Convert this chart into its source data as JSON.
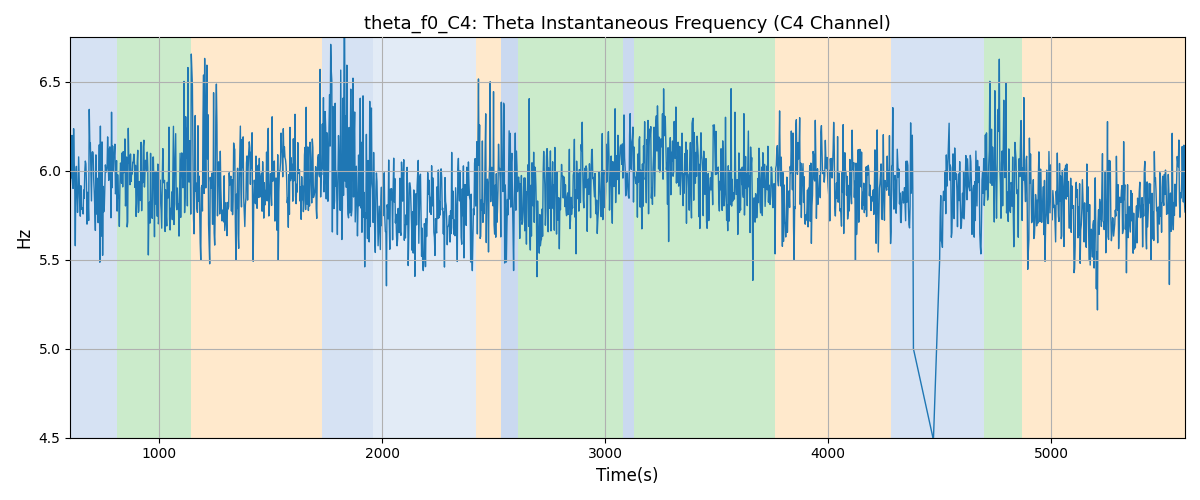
{
  "title": "theta_f0_C4: Theta Instantaneous Frequency (C4 Channel)",
  "xlabel": "Time(s)",
  "ylabel": "Hz",
  "ylim": [
    4.5,
    6.75
  ],
  "xlim": [
    600,
    5600
  ],
  "line_color": "#1f77b4",
  "line_width": 1.0,
  "yticks": [
    4.5,
    5.0,
    5.5,
    6.0,
    6.5
  ],
  "xticks": [
    1000,
    2000,
    3000,
    4000,
    5000
  ],
  "bands": [
    {
      "xmin": 600,
      "xmax": 810,
      "color": "#aec6e8",
      "alpha": 0.5
    },
    {
      "xmin": 810,
      "xmax": 1140,
      "color": "#98d898",
      "alpha": 0.5
    },
    {
      "xmin": 1140,
      "xmax": 1730,
      "color": "#ffd59a",
      "alpha": 0.5
    },
    {
      "xmin": 1730,
      "xmax": 1960,
      "color": "#aec6e8",
      "alpha": 0.5
    },
    {
      "xmin": 1960,
      "xmax": 2420,
      "color": "#aec6e8",
      "alpha": 0.35
    },
    {
      "xmin": 2420,
      "xmax": 2530,
      "color": "#ffd59a",
      "alpha": 0.5
    },
    {
      "xmin": 2530,
      "xmax": 2610,
      "color": "#aec6e8",
      "alpha": 0.65
    },
    {
      "xmin": 2610,
      "xmax": 3080,
      "color": "#98d898",
      "alpha": 0.5
    },
    {
      "xmin": 3080,
      "xmax": 3130,
      "color": "#aec6e8",
      "alpha": 0.65
    },
    {
      "xmin": 3130,
      "xmax": 3760,
      "color": "#98d898",
      "alpha": 0.5
    },
    {
      "xmin": 3760,
      "xmax": 3880,
      "color": "#ffd59a",
      "alpha": 0.5
    },
    {
      "xmin": 3880,
      "xmax": 4280,
      "color": "#ffd59a",
      "alpha": 0.5
    },
    {
      "xmin": 4280,
      "xmax": 4700,
      "color": "#aec6e8",
      "alpha": 0.5
    },
    {
      "xmin": 4700,
      "xmax": 4870,
      "color": "#98d898",
      "alpha": 0.5
    },
    {
      "xmin": 4870,
      "xmax": 5600,
      "color": "#ffd59a",
      "alpha": 0.5
    }
  ]
}
